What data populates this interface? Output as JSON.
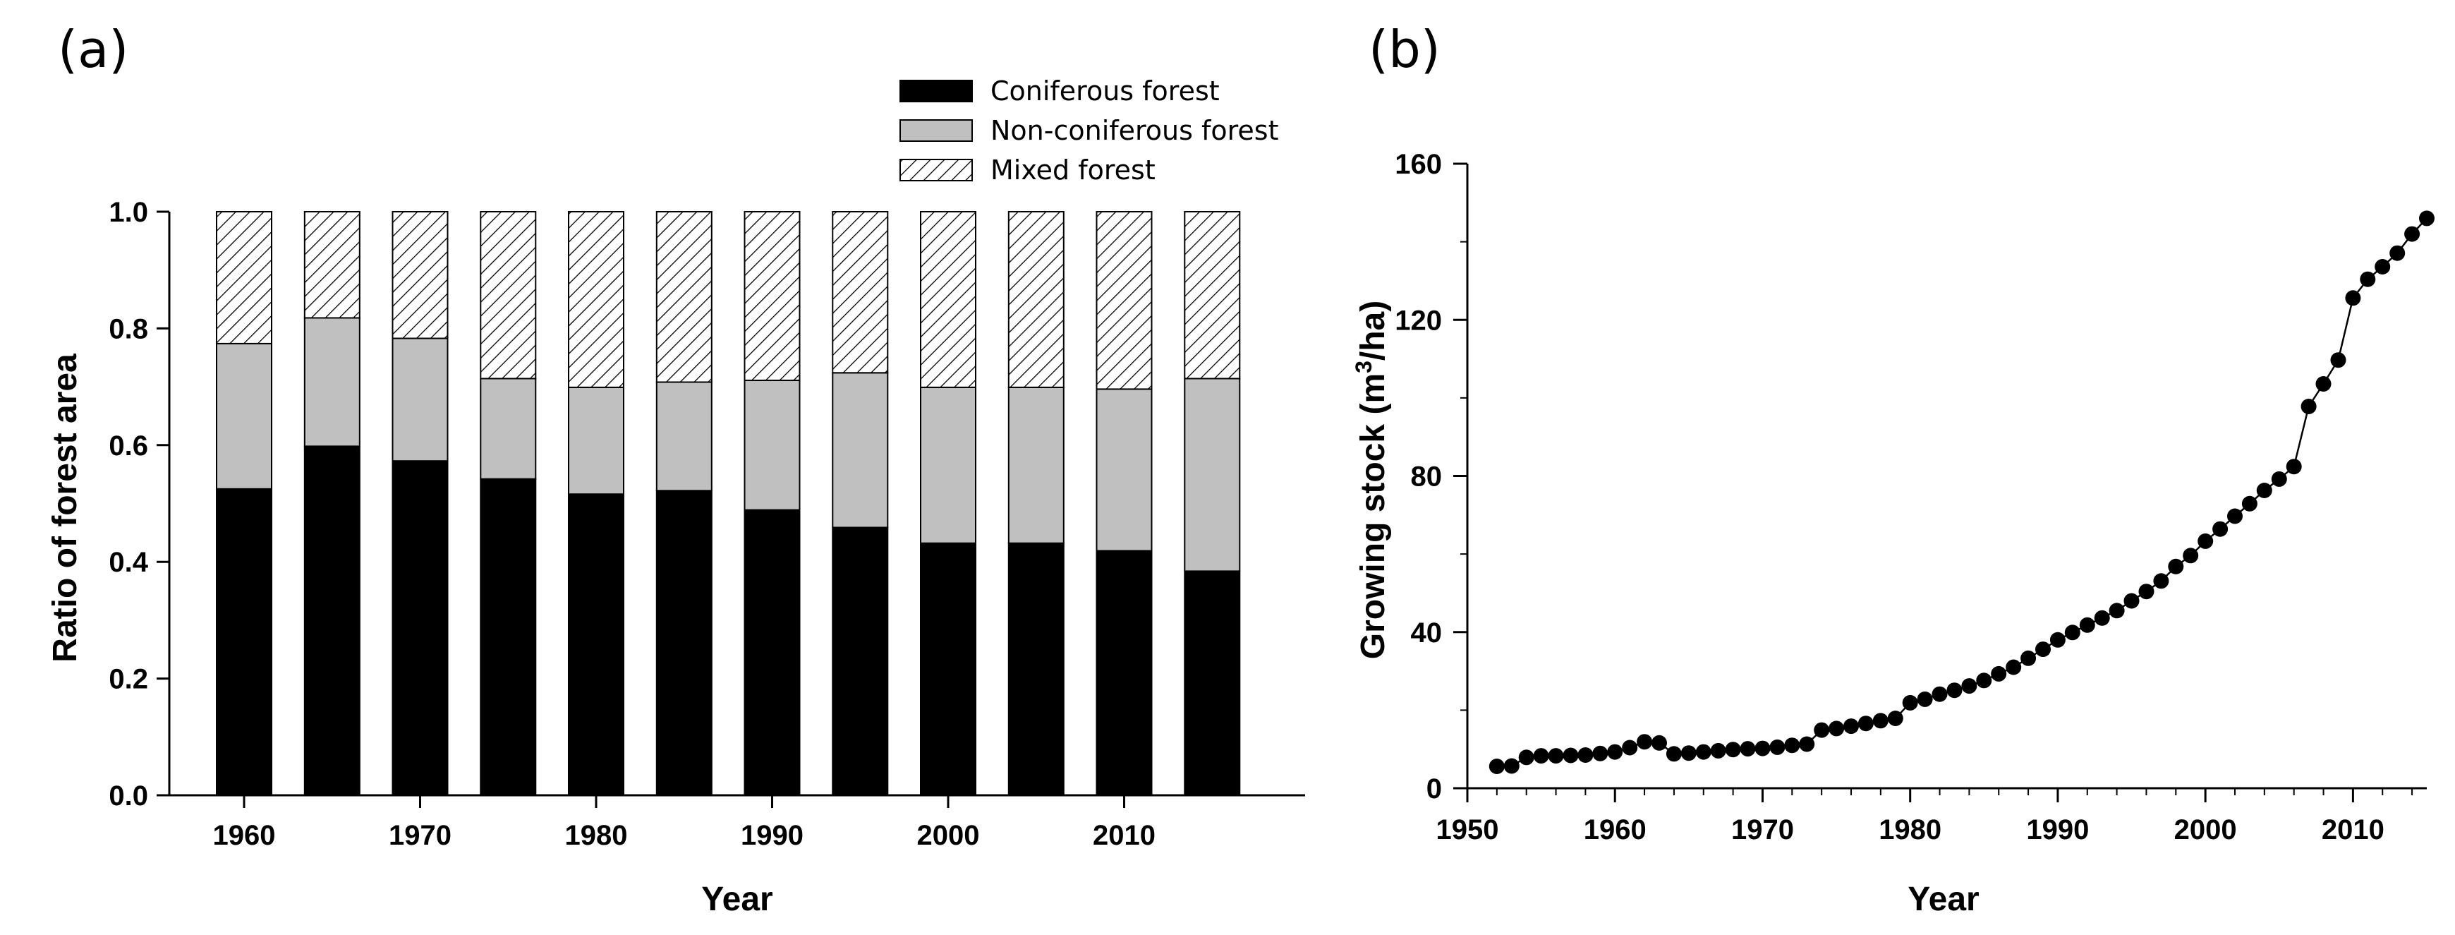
{
  "chart_data": [
    {
      "panel": "(a)",
      "type": "bar",
      "stacked": true,
      "title": "",
      "xlabel": "Year",
      "ylabel": "Ratio of forest area",
      "ylim": [
        0,
        1.0
      ],
      "yticks": [
        "0.0",
        "0.2",
        "0.4",
        "0.6",
        "0.8",
        "1.0"
      ],
      "xticks": [
        "1960",
        "1970",
        "1980",
        "1990",
        "2000",
        "2010"
      ],
      "categories": [
        1960,
        1965,
        1970,
        1975,
        1980,
        1985,
        1990,
        1995,
        2000,
        2005,
        2010,
        2015
      ],
      "legend_position": "top-right",
      "series": [
        {
          "name": "Coniferous forest",
          "fill": "#000000",
          "values": [
            0.525,
            0.598,
            0.573,
            0.542,
            0.516,
            0.522,
            0.489,
            0.459,
            0.432,
            0.432,
            0.419,
            0.384
          ]
        },
        {
          "name": "Non-coniferous forest",
          "fill": "#c0c0c0",
          "values": [
            0.249,
            0.22,
            0.21,
            0.172,
            0.183,
            0.186,
            0.222,
            0.265,
            0.267,
            0.267,
            0.277,
            0.33
          ]
        },
        {
          "name": "Mixed forest",
          "fill": "hatch",
          "values": [
            0.226,
            0.182,
            0.217,
            0.286,
            0.301,
            0.292,
            0.289,
            0.276,
            0.301,
            0.301,
            0.304,
            0.286
          ]
        }
      ]
    },
    {
      "panel": "(b)",
      "type": "line",
      "markers": true,
      "title": "",
      "xlabel": "Year",
      "ylabel_prefix": "Growing stock (m",
      "ylabel_sup": "3",
      "ylabel_suffix": "/ha)",
      "xlim": [
        1950,
        2015
      ],
      "ylim": [
        0,
        160
      ],
      "xticks": [
        "1950",
        "1960",
        "1970",
        "1980",
        "1990",
        "2000",
        "2010"
      ],
      "yticks": [
        "0",
        "40",
        "80",
        "120",
        "160"
      ],
      "series": [
        {
          "name": "Growing stock",
          "x": [
            1952,
            1953,
            1954,
            1955,
            1956,
            1957,
            1958,
            1959,
            1960,
            1961,
            1962,
            1963,
            1964,
            1965,
            1966,
            1967,
            1968,
            1969,
            1970,
            1971,
            1972,
            1973,
            1974,
            1975,
            1976,
            1977,
            1978,
            1979,
            1980,
            1981,
            1982,
            1983,
            1984,
            1985,
            1986,
            1987,
            1988,
            1989,
            1990,
            1991,
            1992,
            1993,
            1994,
            1995,
            1996,
            1997,
            1998,
            1999,
            2000,
            2001,
            2002,
            2003,
            2004,
            2005,
            2006,
            2007,
            2008,
            2009,
            2010,
            2011,
            2012,
            2013,
            2014,
            2015
          ],
          "y": [
            5.6,
            5.7,
            7.9,
            8.3,
            8.3,
            8.4,
            8.5,
            8.9,
            9.3,
            10.4,
            11.9,
            11.6,
            8.8,
            9.0,
            9.3,
            9.6,
            9.9,
            10.1,
            10.2,
            10.5,
            11.0,
            11.3,
            14.9,
            15.3,
            15.9,
            16.6,
            17.3,
            17.9,
            21.9,
            22.8,
            24.1,
            25.1,
            26.2,
            27.6,
            29.3,
            31.0,
            33.3,
            35.6,
            38.0,
            39.9,
            41.8,
            43.6,
            45.5,
            48.0,
            50.4,
            53.1,
            56.8,
            59.6,
            63.3,
            66.4,
            69.7,
            72.9,
            76.3,
            79.2,
            82.4,
            97.8,
            103.6,
            109.7,
            125.6,
            130.4,
            133.6,
            137.1,
            142.0,
            146.0
          ]
        }
      ]
    }
  ]
}
